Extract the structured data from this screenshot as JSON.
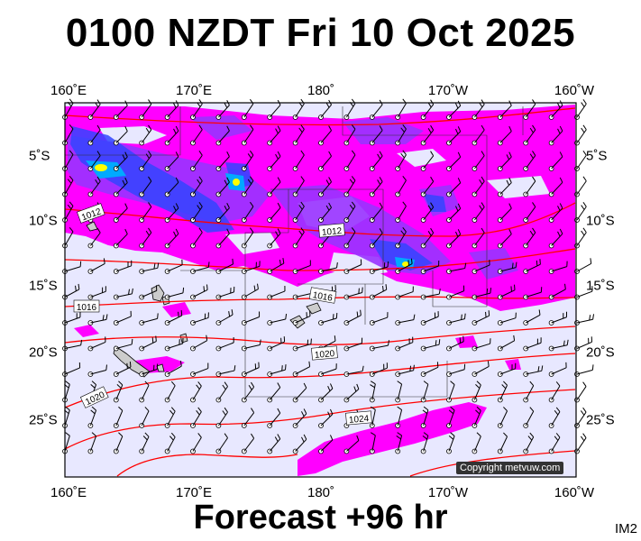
{
  "title": "0100 NZDT Fri 10 Oct 2025",
  "footer": "Forecast +96 hr",
  "corner_label": "IM2",
  "copyright": "Copyright metvuw.com",
  "axes": {
    "lon_ticks": [
      "160˚E",
      "170˚E",
      "180˚",
      "170˚W",
      "160˚W"
    ],
    "lat_ticks": [
      "5˚S",
      "10˚S",
      "15˚S",
      "20˚S",
      "25˚S"
    ]
  },
  "isobar_labels": [
    "1012",
    "1012",
    "1016",
    "1016",
    "1020",
    "1020",
    "1024"
  ],
  "colors": {
    "background": "#e8e8ff",
    "precip_light": "#ff00ff",
    "precip_med": "#9933ff",
    "precip_heavy": "#3344ff",
    "precip_strong": "#00aaff",
    "precip_extreme": "#ffff00",
    "isobar": "#ff0000"
  }
}
